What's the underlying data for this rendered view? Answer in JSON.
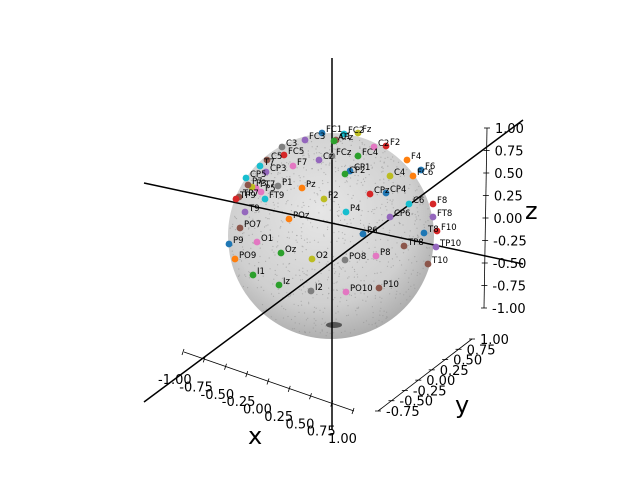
{
  "chart_data": {
    "type": "scatter",
    "projection": "3d",
    "axes": {
      "x": {
        "label": "x",
        "ticks": [
          "-1.00",
          "-0.75",
          "-0.50",
          "-0.25",
          "0.00",
          "0.25",
          "0.50",
          "0.75",
          "1.00"
        ],
        "range": [
          -1,
          1
        ]
      },
      "y": {
        "label": "y",
        "ticks": [
          "-0.75",
          "-0.50",
          "-0.25",
          "0.00",
          "0.25",
          "0.50",
          "0.75",
          "1.00"
        ],
        "range": [
          -1,
          1
        ]
      },
      "z": {
        "label": "z",
        "ticks": [
          "1.00",
          "0.75",
          "0.50",
          "0.25",
          "0.00",
          "-0.25",
          "-0.50",
          "-0.75",
          "-1.00"
        ],
        "range": [
          -1,
          1
        ]
      }
    },
    "surface": "unit sphere (gray point cloud)",
    "grid": false,
    "electrodes": [
      {
        "name": "FC1",
        "color": "#1f77b4"
      },
      {
        "name": "Fz",
        "color": "#bcbd22"
      },
      {
        "name": "FC2",
        "color": "#17becf"
      },
      {
        "name": "C1",
        "color": "#8c564b"
      },
      {
        "name": "F4",
        "color": "#ff7f0e"
      },
      {
        "name": "FC3",
        "color": "#9467bd"
      },
      {
        "name": "AFz",
        "color": "#2ca02c"
      },
      {
        "name": "C2",
        "color": "#e377c2"
      },
      {
        "name": "F2",
        "color": "#d62728"
      },
      {
        "name": "F6",
        "color": "#1f77b4"
      },
      {
        "name": "C3",
        "color": "#7f7f7f"
      },
      {
        "name": "FC5",
        "color": "#d62728"
      },
      {
        "name": "Cz",
        "color": "#9467bd"
      },
      {
        "name": "FC4",
        "color": "#2ca02c"
      },
      {
        "name": "C5",
        "color": "#8c564b"
      },
      {
        "name": "FC6",
        "color": "#ff7f0e"
      },
      {
        "name": "F7",
        "color": "#e377c2"
      },
      {
        "name": "C4",
        "color": "#bcbd22"
      },
      {
        "name": "T7",
        "color": "#17becf"
      },
      {
        "name": "CP1",
        "color": "#1f77b4"
      },
      {
        "name": "FCz",
        "color": "#7f7f7f"
      },
      {
        "name": "CP3",
        "color": "#9467bd"
      },
      {
        "name": "CP5",
        "color": "#17becf"
      },
      {
        "name": "C6",
        "color": "#17becf"
      },
      {
        "name": "CPz",
        "color": "#d62728"
      },
      {
        "name": "F8",
        "color": "#d62728"
      },
      {
        "name": "TP7",
        "color": "#8c564b"
      },
      {
        "name": "T8",
        "color": "#1f77b4"
      },
      {
        "name": "CP2",
        "color": "#2ca02c"
      },
      {
        "name": "FT7",
        "color": "#e377c2"
      },
      {
        "name": "P1",
        "color": "#7f7f7f"
      },
      {
        "name": "Pz",
        "color": "#ff7f0e"
      },
      {
        "name": "P3",
        "color": "#bcbd22"
      },
      {
        "name": "FT9",
        "color": "#17becf"
      },
      {
        "name": "P4",
        "color": "#17becf"
      },
      {
        "name": "CP4",
        "color": "#1f77b4"
      },
      {
        "name": "CP6",
        "color": "#9467bd"
      },
      {
        "name": "FT8",
        "color": "#9467bd"
      },
      {
        "name": "TP9",
        "color": "#d62728"
      },
      {
        "name": "P7",
        "color": "#8c564b"
      },
      {
        "name": "T9",
        "color": "#9467bd"
      },
      {
        "name": "P5",
        "color": "#e377c2"
      },
      {
        "name": "F10",
        "color": "#d62728"
      },
      {
        "name": "POz",
        "color": "#ff7f0e"
      },
      {
        "name": "P2",
        "color": "#bcbd22"
      },
      {
        "name": "T10",
        "color": "#8c564b"
      },
      {
        "name": "TP8",
        "color": "#8c564b"
      },
      {
        "name": "PO7",
        "color": "#8c564b"
      },
      {
        "name": "P6",
        "color": "#1f77b4"
      },
      {
        "name": "TP10",
        "color": "#9467bd"
      },
      {
        "name": "P9",
        "color": "#1f77b4"
      },
      {
        "name": "O1",
        "color": "#e377c2"
      },
      {
        "name": "Oz",
        "color": "#2ca02c"
      },
      {
        "name": "O2",
        "color": "#bcbd22"
      },
      {
        "name": "P8",
        "color": "#e377c2"
      },
      {
        "name": "PO9",
        "color": "#ff7f0e"
      },
      {
        "name": "PO8",
        "color": "#7f7f7f"
      },
      {
        "name": "I1",
        "color": "#2ca02c"
      },
      {
        "name": "P10",
        "color": "#8c564b"
      },
      {
        "name": "I2",
        "color": "#7f7f7f"
      },
      {
        "name": "PO10",
        "color": "#e377c2"
      },
      {
        "name": "Iz",
        "color": "#2ca02c"
      }
    ]
  }
}
